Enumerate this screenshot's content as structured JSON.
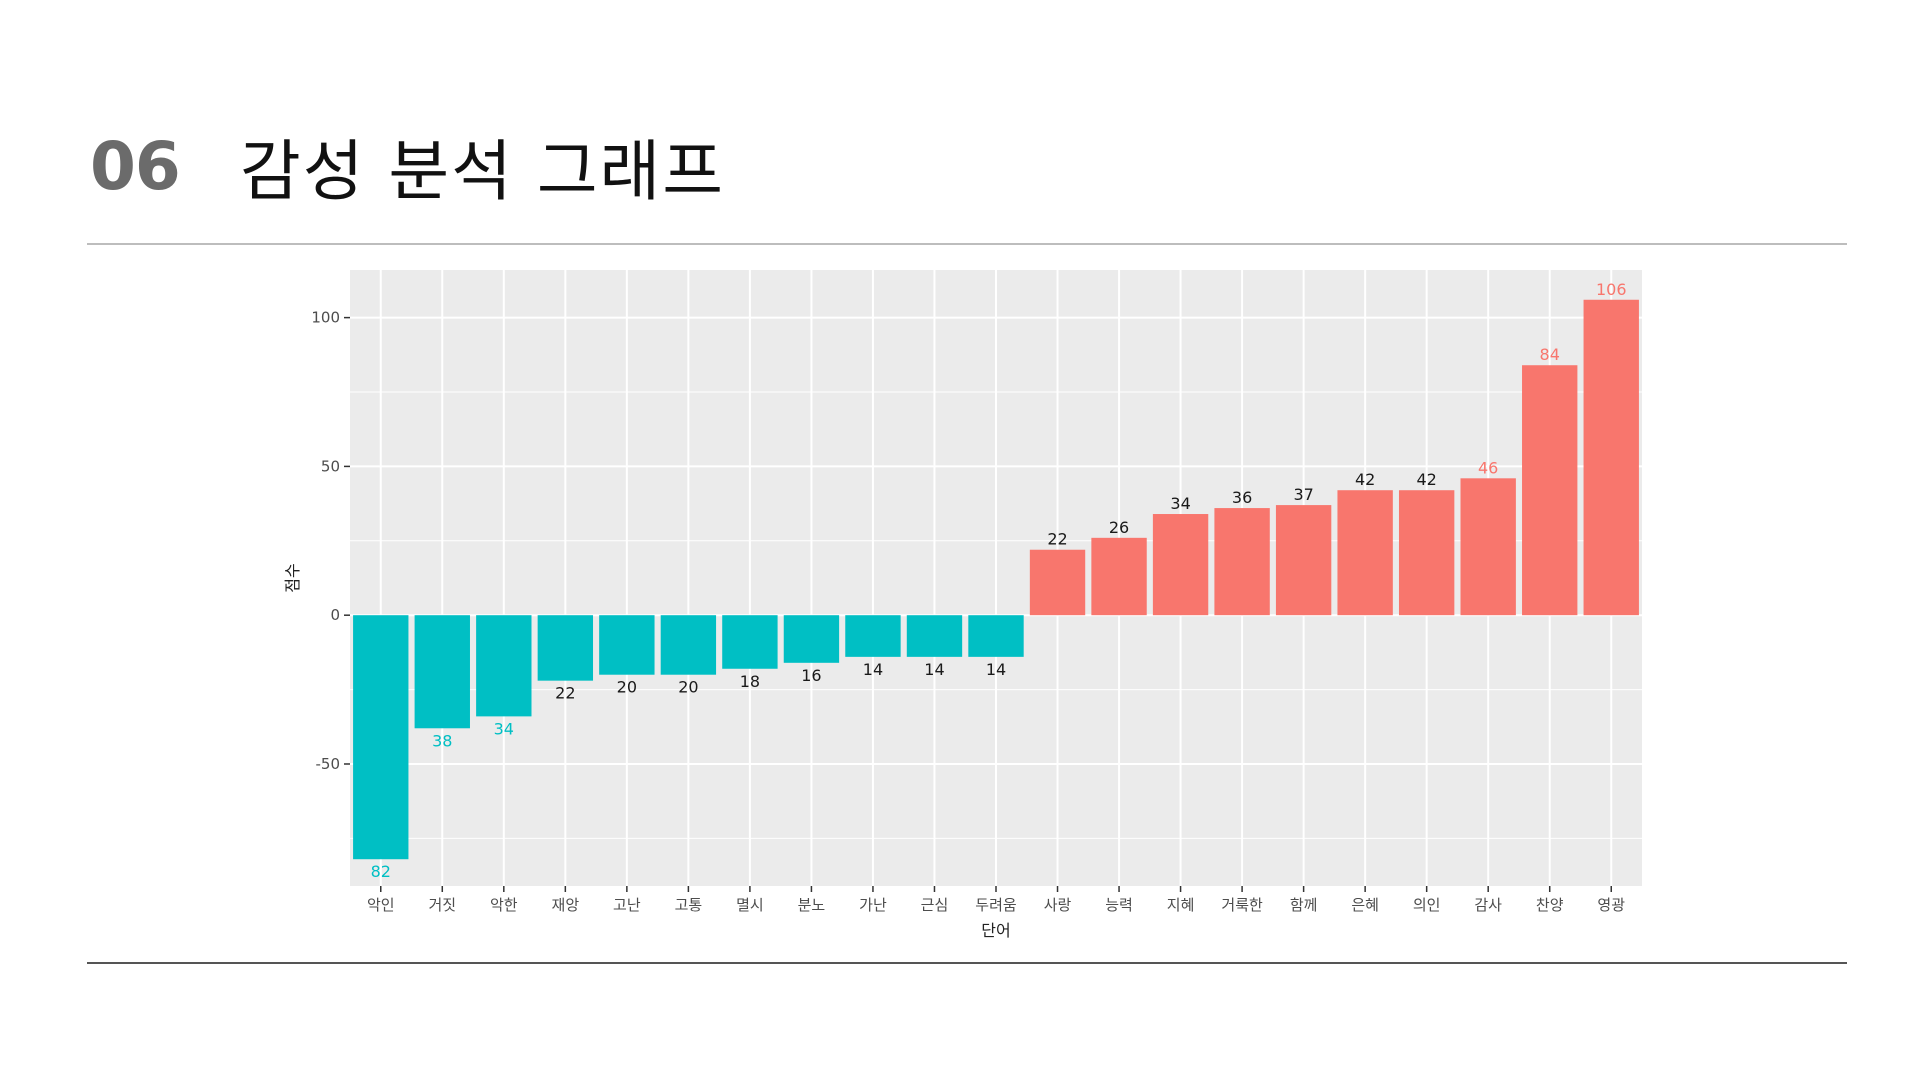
{
  "slide": {
    "number": "06",
    "title": "감성 분석 그래프"
  },
  "colors": {
    "negative": "#00BFC4",
    "positive": "#F8766D",
    "panel": "#EBEBEB",
    "grid": "#FFFFFF",
    "label_dark": "#1a1a1a"
  },
  "chart_data": {
    "type": "bar",
    "xlabel": "단어",
    "ylabel": "점수",
    "ylim": [
      -91,
      116
    ],
    "yticks": [
      -50,
      0,
      50,
      100
    ],
    "grid": true,
    "legend": "none",
    "categories": [
      "악인",
      "거짓",
      "악한",
      "재앙",
      "고난",
      "고통",
      "멸시",
      "분노",
      "가난",
      "근심",
      "두려움",
      "사랑",
      "능력",
      "지혜",
      "거룩한",
      "함께",
      "은혜",
      "의인",
      "감사",
      "찬양",
      "영광"
    ],
    "values": [
      -82,
      -38,
      -34,
      -22,
      -20,
      -20,
      -18,
      -16,
      -14,
      -14,
      -14,
      22,
      26,
      34,
      36,
      37,
      42,
      42,
      46,
      84,
      106
    ],
    "data_labels": [
      "82",
      "38",
      "34",
      "22",
      "20",
      "20",
      "18",
      "16",
      "14",
      "14",
      "14",
      "22",
      "26",
      "34",
      "36",
      "37",
      "42",
      "42",
      "46",
      "84",
      "106"
    ],
    "label_colors": [
      "colored",
      "colored",
      "colored",
      "dark",
      "dark",
      "dark",
      "dark",
      "dark",
      "dark",
      "dark",
      "dark",
      "dark",
      "dark",
      "dark",
      "dark",
      "dark",
      "dark",
      "dark",
      "colored",
      "colored",
      "colored"
    ]
  }
}
